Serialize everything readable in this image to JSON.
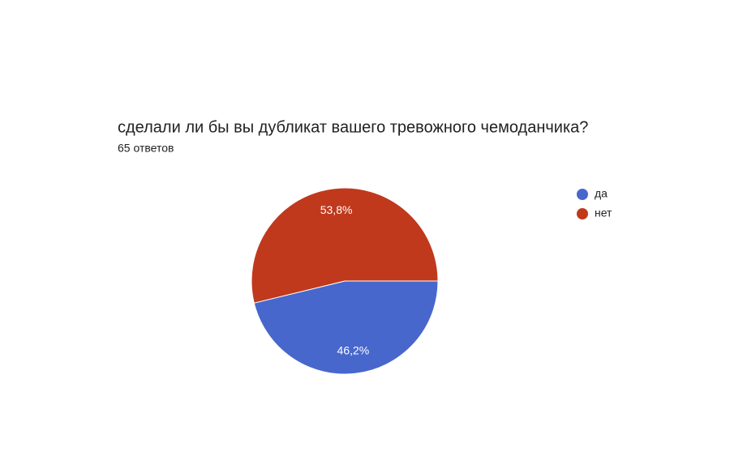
{
  "chart_data": {
    "type": "pie",
    "title": "сделали ли бы вы дубликат вашего тревожного чемоданчика?",
    "subtitle": "65 ответов",
    "categories": [
      "да",
      "нет"
    ],
    "values": [
      46.2,
      53.8
    ],
    "value_labels": [
      "46,2%",
      "53,8%"
    ],
    "colors": [
      "#4767cc",
      "#c0391c"
    ]
  }
}
